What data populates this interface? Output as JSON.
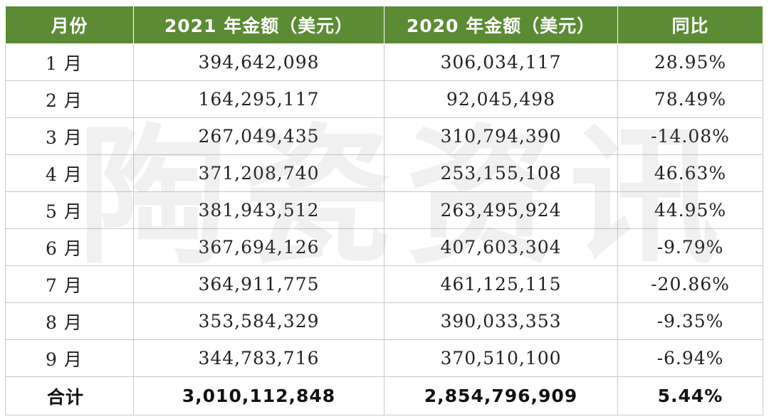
{
  "table": {
    "headers": [
      "月份",
      "2021 年金额（美元）",
      "2020 年金额（美元）",
      "同比"
    ],
    "rows": [
      {
        "month": "1 月",
        "y2021": "394,642,098",
        "y2020": "306,034,117",
        "yoy": "28.95%"
      },
      {
        "month": "2 月",
        "y2021": "164,295,117",
        "y2020": "92,045,498",
        "yoy": "78.49%"
      },
      {
        "month": "3 月",
        "y2021": "267,049,435",
        "y2020": "310,794,390",
        "yoy": "-14.08%"
      },
      {
        "month": "4 月",
        "y2021": "371,208,740",
        "y2020": "253,155,108",
        "yoy": "46.63%"
      },
      {
        "month": "5 月",
        "y2021": "381,943,512",
        "y2020": "263,495,924",
        "yoy": "44.95%"
      },
      {
        "month": "6 月",
        "y2021": "367,694,126",
        "y2020": "407,603,304",
        "yoy": "-9.79%"
      },
      {
        "month": "7 月",
        "y2021": "364,911,775",
        "y2020": "461,125,115",
        "yoy": "-20.86%"
      },
      {
        "month": "8 月",
        "y2021": "353,584,329",
        "y2020": "390,033,353",
        "yoy": "-9.35%"
      },
      {
        "month": "9 月",
        "y2021": "344,783,716",
        "y2020": "370,510,100",
        "yoy": "-6.94%"
      }
    ],
    "total": {
      "month": "合计",
      "y2021": "3,010,112,848",
      "y2020": "2,854,796,909",
      "yoy": "5.44%"
    }
  },
  "watermark": "陶瓷资讯",
  "colors": {
    "header_bg": "#5b8c35",
    "header_text": "#ffffff",
    "border": "#c9c9c9"
  }
}
